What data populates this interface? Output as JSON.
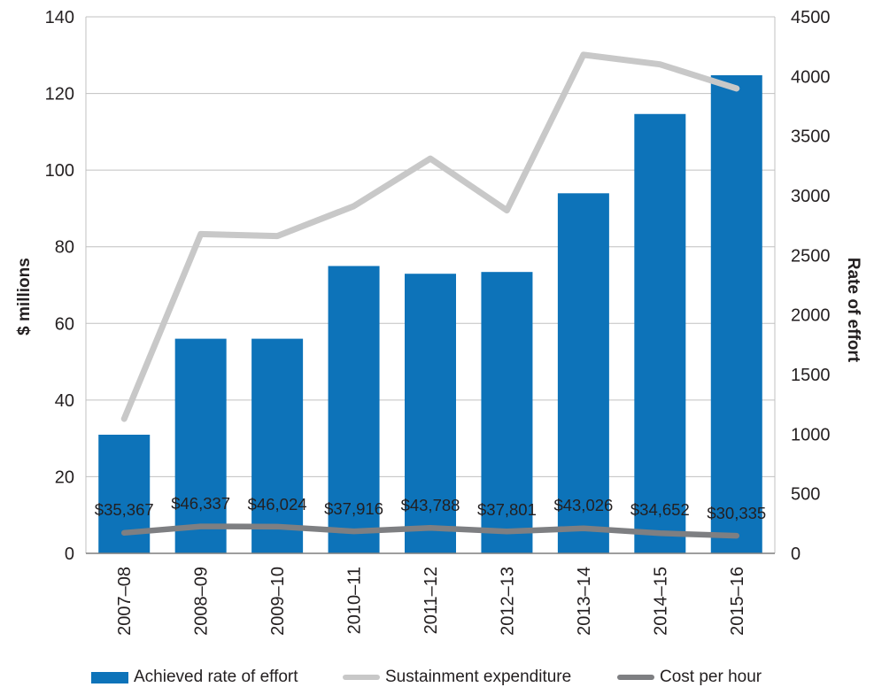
{
  "chart_data": {
    "type": "bar",
    "subtype": "bar-line-combo",
    "title": "",
    "categories": [
      "2007–08",
      "2008–09",
      "2009–10",
      "2010–11",
      "2011–12",
      "2012–13",
      "2013–14",
      "2014–15",
      "2015–16"
    ],
    "series": [
      {
        "name": "Achieved rate of effort",
        "type": "bar",
        "axis": "right",
        "color": "#0d73b9",
        "values": [
          995,
          1800,
          1800,
          2410,
          2345,
          2360,
          3020,
          3685,
          4010
        ]
      },
      {
        "name": "Sustainment expenditure",
        "type": "line",
        "axis": "left",
        "color": "#c8c8c8",
        "values": [
          35.1,
          83.3,
          82.8,
          90.6,
          103.0,
          89.5,
          130.1,
          127.6,
          121.3
        ]
      },
      {
        "name": "Cost per hour",
        "type": "line",
        "axis": "left",
        "color": "#7e7f82",
        "values": [
          35367,
          46337,
          46024,
          37916,
          43788,
          37801,
          43026,
          34652,
          30335
        ],
        "data_labels": [
          "$35,367",
          "$46,337",
          "$46,024",
          "$37,916",
          "$43,788",
          "$37,801",
          "$43,026",
          "$34,652",
          "$30,335"
        ],
        "plot_divisor": 6600
      }
    ],
    "left_axis": {
      "title": "$ millions",
      "min": 0,
      "max": 140,
      "ticks": [
        0,
        20,
        40,
        60,
        80,
        100,
        120,
        140
      ]
    },
    "right_axis": {
      "title": "Rate of effort",
      "min": 0,
      "max": 4500,
      "ticks": [
        0,
        500,
        1000,
        1500,
        2000,
        2500,
        3000,
        3500,
        4000,
        4500
      ]
    },
    "grid": true,
    "legend_position": "bottom",
    "colors": {
      "grid_line": "#c0c0c0",
      "plot_border": "#c0c0c0",
      "baseline": "#7f7f7f",
      "text": "#231f20"
    }
  },
  "legend": {
    "items": [
      {
        "label": "Achieved rate of effort",
        "swatch": "bar",
        "color": "#0d73b9"
      },
      {
        "label": "Sustainment expenditure",
        "swatch": "line",
        "color": "#c8c8c8"
      },
      {
        "label": "Cost per hour",
        "swatch": "line",
        "color": "#7e7f82"
      }
    ]
  }
}
